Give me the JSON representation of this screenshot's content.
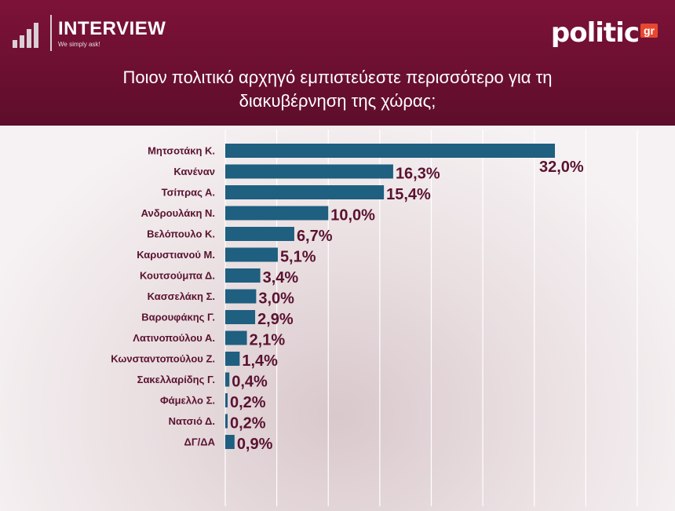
{
  "header": {
    "brand_left": "INTERVIEW",
    "brand_left_tagline": "We simply ask!",
    "brand_right": "politic",
    "brand_right_badge": "gr",
    "title_line1": "Ποιον πολιτικό αρχηγό εμπιστεύεστε περισσότερο για τη",
    "title_line2": "διακυβέρνηση της χώρας;"
  },
  "colors": {
    "header_bg": "#6e1032",
    "bar": "#1f5f80",
    "label": "#5a1230",
    "grid": "#ffffff"
  },
  "chart_data": {
    "type": "bar",
    "orientation": "horizontal",
    "title": "Ποιον πολιτικό αρχηγό εμπιστεύεστε περισσότερο για τη διακυβέρνηση της χώρας;",
    "categories": [
      "Μητσοτάκη Κ.",
      "Κανέναν",
      "Τσίπρας Α.",
      "Ανδρουλάκη Ν.",
      "Βελόπουλο Κ.",
      "Καρυστιανού Μ.",
      "Κουτσούμπα Δ.",
      "Κασσελάκη Σ.",
      "Βαρουφάκης Γ.",
      "Λατινοπούλου Α.",
      "Κωνσταντοπούλου Ζ.",
      "Σακελλαρίδης Γ.",
      "Φάμελλο Σ.",
      "Νατσιό Δ.",
      "ΔΓ/ΔΑ"
    ],
    "values": [
      32.0,
      16.3,
      15.4,
      10.0,
      6.7,
      5.1,
      3.4,
      3.0,
      2.9,
      2.1,
      1.4,
      0.4,
      0.2,
      0.2,
      0.9
    ],
    "labels": [
      "32,0%",
      "16,3%",
      "15,4%",
      "10,0%",
      "6,7%",
      "5,1%",
      "3,4%",
      "3,0%",
      "2,9%",
      "2,1%",
      "1,4%",
      "0,4%",
      "0,2%",
      "0,2%",
      "0,9%"
    ],
    "xlim": [
      0,
      40
    ],
    "grid": true,
    "legend": "none"
  }
}
